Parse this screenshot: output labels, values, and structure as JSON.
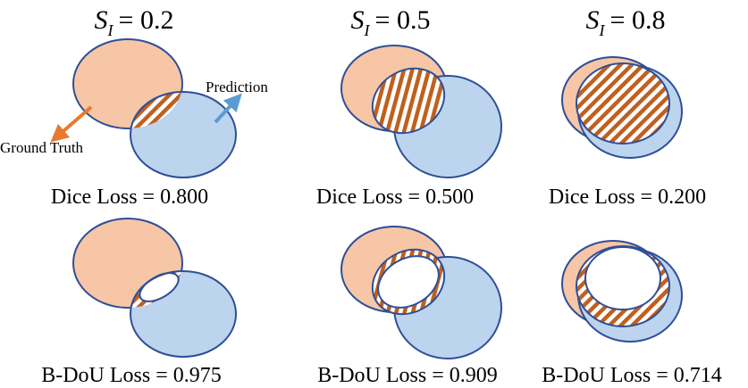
{
  "columns": [
    {
      "title_var": "S",
      "title_sub": "I",
      "title_value": "= 0.2",
      "dice_loss": "Dice Loss = 0.800",
      "bdou_loss": "B-DoU Loss = 0.975"
    },
    {
      "title_var": "S",
      "title_sub": "I",
      "title_value": "= 0.5",
      "dice_loss": "Dice Loss = 0.500",
      "bdou_loss": "B-DoU Loss = 0.909"
    },
    {
      "title_var": "S",
      "title_sub": "I",
      "title_value": "= 0.8",
      "dice_loss": "Dice Loss = 0.200",
      "bdou_loss": "B-DoU Loss = 0.714"
    }
  ],
  "annotations": {
    "prediction": "Prediction",
    "ground_truth": "Ground Truth"
  },
  "colors": {
    "ground_truth_fill": "#f7c6a6",
    "prediction_fill": "#bdd4ee",
    "outline": "#2f4f96",
    "hatch": "#c0601e",
    "gt_arrow": "#e87a2e",
    "pred_arrow": "#5a9bd5"
  }
}
